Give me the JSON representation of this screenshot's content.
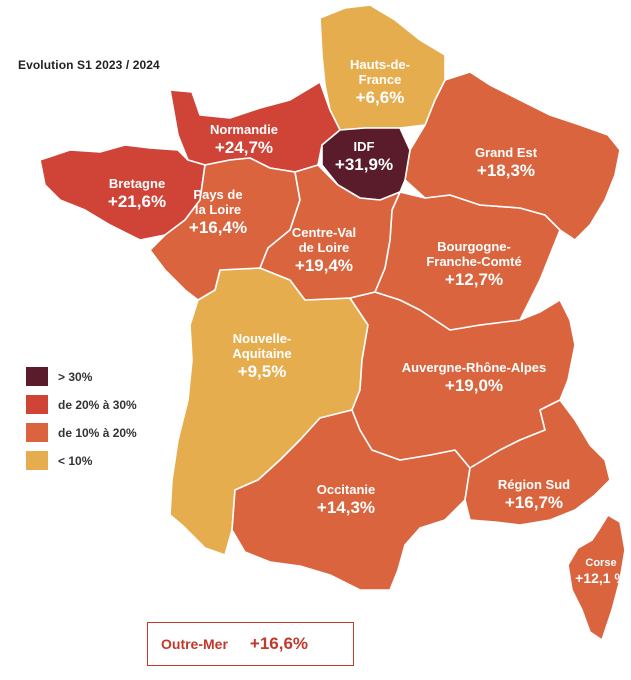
{
  "title": "Evolution S1 2023 / 2024",
  "colors": {
    "over_30": "#5a1b2b",
    "20_to_30": "#cf4437",
    "10_to_20": "#d9643e",
    "under_10": "#e6ad4f"
  },
  "legend": [
    {
      "label": "> 30%",
      "color": "#5a1b2b"
    },
    {
      "label": "de 20% à 30%",
      "color": "#cf4437"
    },
    {
      "label": "de 10% à 20%",
      "color": "#d9643e"
    },
    {
      "label": "< 10%",
      "color": "#e6ad4f"
    }
  ],
  "regions": {
    "hauts_de_france": {
      "name": "Hauts-de-France",
      "name_line1": "Hauts-de-",
      "name_line2": "France",
      "value": "+6,6%",
      "color": "#e6ad4f"
    },
    "normandie": {
      "name": "Normandie",
      "value": "+24,7%",
      "color": "#cf4437"
    },
    "idf": {
      "name": "IDF",
      "value": "+31,9%",
      "color": "#5a1b2b"
    },
    "grand_est": {
      "name": "Grand Est",
      "value": "+18,3%",
      "color": "#d9643e"
    },
    "bretagne": {
      "name": "Bretagne",
      "value": "+21,6%",
      "color": "#cf4437"
    },
    "pays_de_la_loire": {
      "name": "Pays de la Loire",
      "name_line1": "Pays de",
      "name_line2": "la Loire",
      "value": "+16,4%",
      "color": "#d9643e"
    },
    "centre_val_de_loire": {
      "name": "Centre-Val de Loire",
      "name_line1": "Centre-Val",
      "name_line2": "de Loire",
      "value": "+19,4%",
      "color": "#d9643e"
    },
    "bourgogne_franche_comte": {
      "name": "Bourgogne-Franche-Comté",
      "name_line1": "Bourgogne-",
      "name_line2": "Franche-Comté",
      "value": "+12,7%",
      "color": "#d9643e"
    },
    "nouvelle_aquitaine": {
      "name": "Nouvelle-Aquitaine",
      "name_line1": "Nouvelle-",
      "name_line2": "Aquitaine",
      "value": "+9,5%",
      "color": "#e6ad4f"
    },
    "auvergne_rhone_alpes": {
      "name": "Auvergne-Rhône-Alpes",
      "value": "+19,0%",
      "color": "#d9643e"
    },
    "occitanie": {
      "name": "Occitanie",
      "value": "+14,3%",
      "color": "#d9643e"
    },
    "region_sud": {
      "name": "Région Sud",
      "value": "+16,7%",
      "color": "#d9643e"
    },
    "corse": {
      "name": "Corse",
      "value": "+12,1 %",
      "color": "#d9643e"
    }
  },
  "outre_mer": {
    "name": "Outre-Mer",
    "value": "+16,6%"
  }
}
